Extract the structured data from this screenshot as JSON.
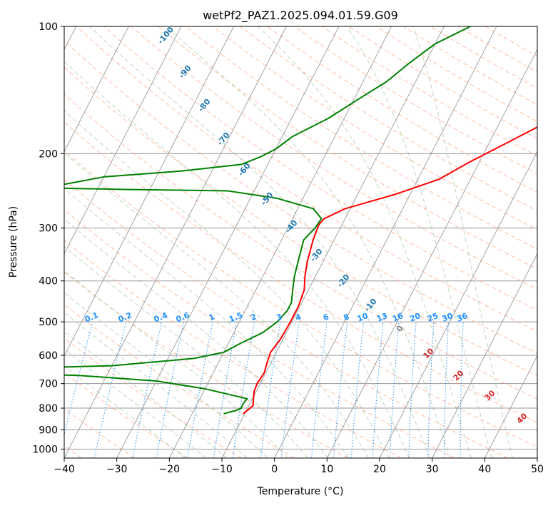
{
  "figure": {
    "title": "wetPf2_PAZ1.2025.094.01.59.G09"
  },
  "chart_data": {
    "type": "line",
    "subtype": "skew-T log-P diagram",
    "title": "wetPf2_PAZ1.2025.094.01.59.G09",
    "xlabel": "Temperature (°C)",
    "ylabel": "Pressure (hPa)",
    "xlim": [
      -40,
      50
    ],
    "ylim": [
      1050,
      100
    ],
    "y_scale": "log",
    "grid": true,
    "x_ticks": [
      -40,
      -30,
      -20,
      -10,
      0,
      10,
      20,
      30,
      40,
      50
    ],
    "x_tick_labels": [
      "−40",
      "−30",
      "−20",
      "−10",
      "0",
      "10",
      "20",
      "30",
      "40",
      "50"
    ],
    "y_ticks": [
      100,
      200,
      300,
      400,
      500,
      600,
      700,
      800,
      900,
      1000
    ],
    "y_tick_labels": [
      "100",
      "200",
      "300",
      "400",
      "500",
      "600",
      "700",
      "800",
      "900",
      "1000"
    ],
    "colors": {
      "temperature": "#ff0000",
      "dewpoint": "#008000",
      "isotherm": "#999999",
      "dry_adiabat": "#ffa07a",
      "moist_adiabat": "#8fbc8f",
      "mixing_ratio": "#1e90ff",
      "moist_label": "#1f77b4",
      "dry_label": "#d62728"
    },
    "series": [
      {
        "role": "temperature",
        "points": [
          [
            -10.3,
            825
          ],
          [
            -9.2,
            790
          ],
          [
            -9.8,
            760
          ],
          [
            -10.4,
            730
          ],
          [
            -10.6,
            700
          ],
          [
            -10.3,
            660
          ],
          [
            -10.8,
            620
          ],
          [
            -11.1,
            590
          ],
          [
            -10.5,
            550
          ],
          [
            -10.3,
            500
          ],
          [
            -10.3,
            460
          ],
          [
            -10.8,
            420
          ],
          [
            -12.0,
            390
          ],
          [
            -13.0,
            360
          ],
          [
            -14.0,
            320
          ],
          [
            -14.4,
            295
          ],
          [
            -14.0,
            285
          ],
          [
            -11.0,
            270
          ],
          [
            -3.0,
            250
          ],
          [
            4.0,
            230
          ],
          [
            8.0,
            210
          ],
          [
            13.0,
            190
          ],
          [
            18.5,
            170
          ],
          [
            24.0,
            150
          ],
          [
            28.0,
            135
          ],
          [
            30.5,
            120
          ],
          [
            34.0,
            110
          ],
          [
            37.0,
            100
          ]
        ]
      },
      {
        "role": "dewpoint",
        "points": [
          [
            -14.0,
            825
          ],
          [
            -12.0,
            810
          ],
          [
            -11.2,
            800
          ],
          [
            -11.3,
            780
          ],
          [
            -11.0,
            760
          ],
          [
            -20.0,
            720
          ],
          [
            -30.0,
            690
          ],
          [
            -45.0,
            670
          ],
          [
            -60.0,
            660
          ],
          [
            -60.0,
            645
          ],
          [
            -40.0,
            635
          ],
          [
            -25.0,
            610
          ],
          [
            -20.0,
            590
          ],
          [
            -17.5,
            560
          ],
          [
            -14.5,
            530
          ],
          [
            -12.8,
            500
          ],
          [
            -12.0,
            470
          ],
          [
            -12.0,
            450
          ],
          [
            -13.0,
            420
          ],
          [
            -14.0,
            390
          ],
          [
            -15.0,
            350
          ],
          [
            -15.8,
            320
          ],
          [
            -14.8,
            300
          ],
          [
            -14.5,
            285
          ],
          [
            -17.0,
            270
          ],
          [
            -25.0,
            255
          ],
          [
            -35.0,
            245
          ],
          [
            -55.0,
            243
          ],
          [
            -70.0,
            241
          ],
          [
            -60.0,
            227
          ],
          [
            -46.0,
            220
          ],
          [
            -35.0,
            212
          ],
          [
            -32.0,
            203
          ],
          [
            -30.0,
            195
          ],
          [
            -28.0,
            182
          ],
          [
            -23.0,
            165
          ],
          [
            -19.5,
            150
          ],
          [
            -15.5,
            135
          ],
          [
            -13.0,
            122
          ],
          [
            -10.0,
            110
          ],
          [
            -5.0,
            100
          ]
        ]
      }
    ],
    "mixing_ratio_labels": [
      "0.1",
      "0.2",
      "0.4",
      "0.6",
      "1",
      "1.5",
      "2",
      "3",
      "4",
      "6",
      "8",
      "10",
      "13",
      "16",
      "20",
      "25",
      "30",
      "36"
    ],
    "moist_adiabat_labels": [
      "-100",
      "-90",
      "-80",
      "-70",
      "-60",
      "-50",
      "-40",
      "-30",
      "-20",
      "-10",
      "0"
    ],
    "dry_adiabat_labels": [
      "10",
      "20",
      "30",
      "40"
    ]
  }
}
